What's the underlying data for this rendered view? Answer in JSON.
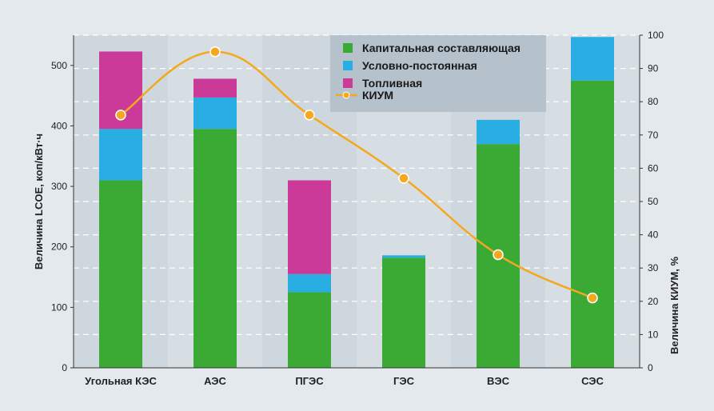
{
  "chart_data": {
    "type": "bar",
    "stacked": true,
    "categories": [
      "Угольная КЭС",
      "АЭС",
      "ПГЭС",
      "ГЭС",
      "ВЭС",
      "СЭС"
    ],
    "series": [
      {
        "name": "Капитальная составляющая",
        "color": "#3aaa35",
        "values": [
          310,
          395,
          125,
          182,
          370,
          475
        ]
      },
      {
        "name": "Условно-постоянная",
        "color": "#29aee4",
        "values": [
          85,
          52,
          30,
          4,
          40,
          72
        ]
      },
      {
        "name": "Топливная",
        "color": "#cc3a99",
        "values": [
          128,
          31,
          155,
          0,
          0,
          0
        ]
      }
    ],
    "line_series": {
      "name": "КИУМ",
      "color": "#f4a81d",
      "axis": "right",
      "values": [
        76,
        95,
        76,
        57,
        34,
        21
      ]
    },
    "ylabel": "Величина LCOE, коп/кВт·ч",
    "ylim": [
      0,
      550
    ],
    "yticks": [
      0,
      100,
      200,
      300,
      400,
      500
    ],
    "y2label": "Величина КИУМ, %",
    "y2lim": [
      0,
      100
    ],
    "y2ticks": [
      0,
      10,
      20,
      30,
      40,
      50,
      60,
      70,
      80,
      90,
      100
    ],
    "grid": true,
    "legend_position": "top-right"
  }
}
